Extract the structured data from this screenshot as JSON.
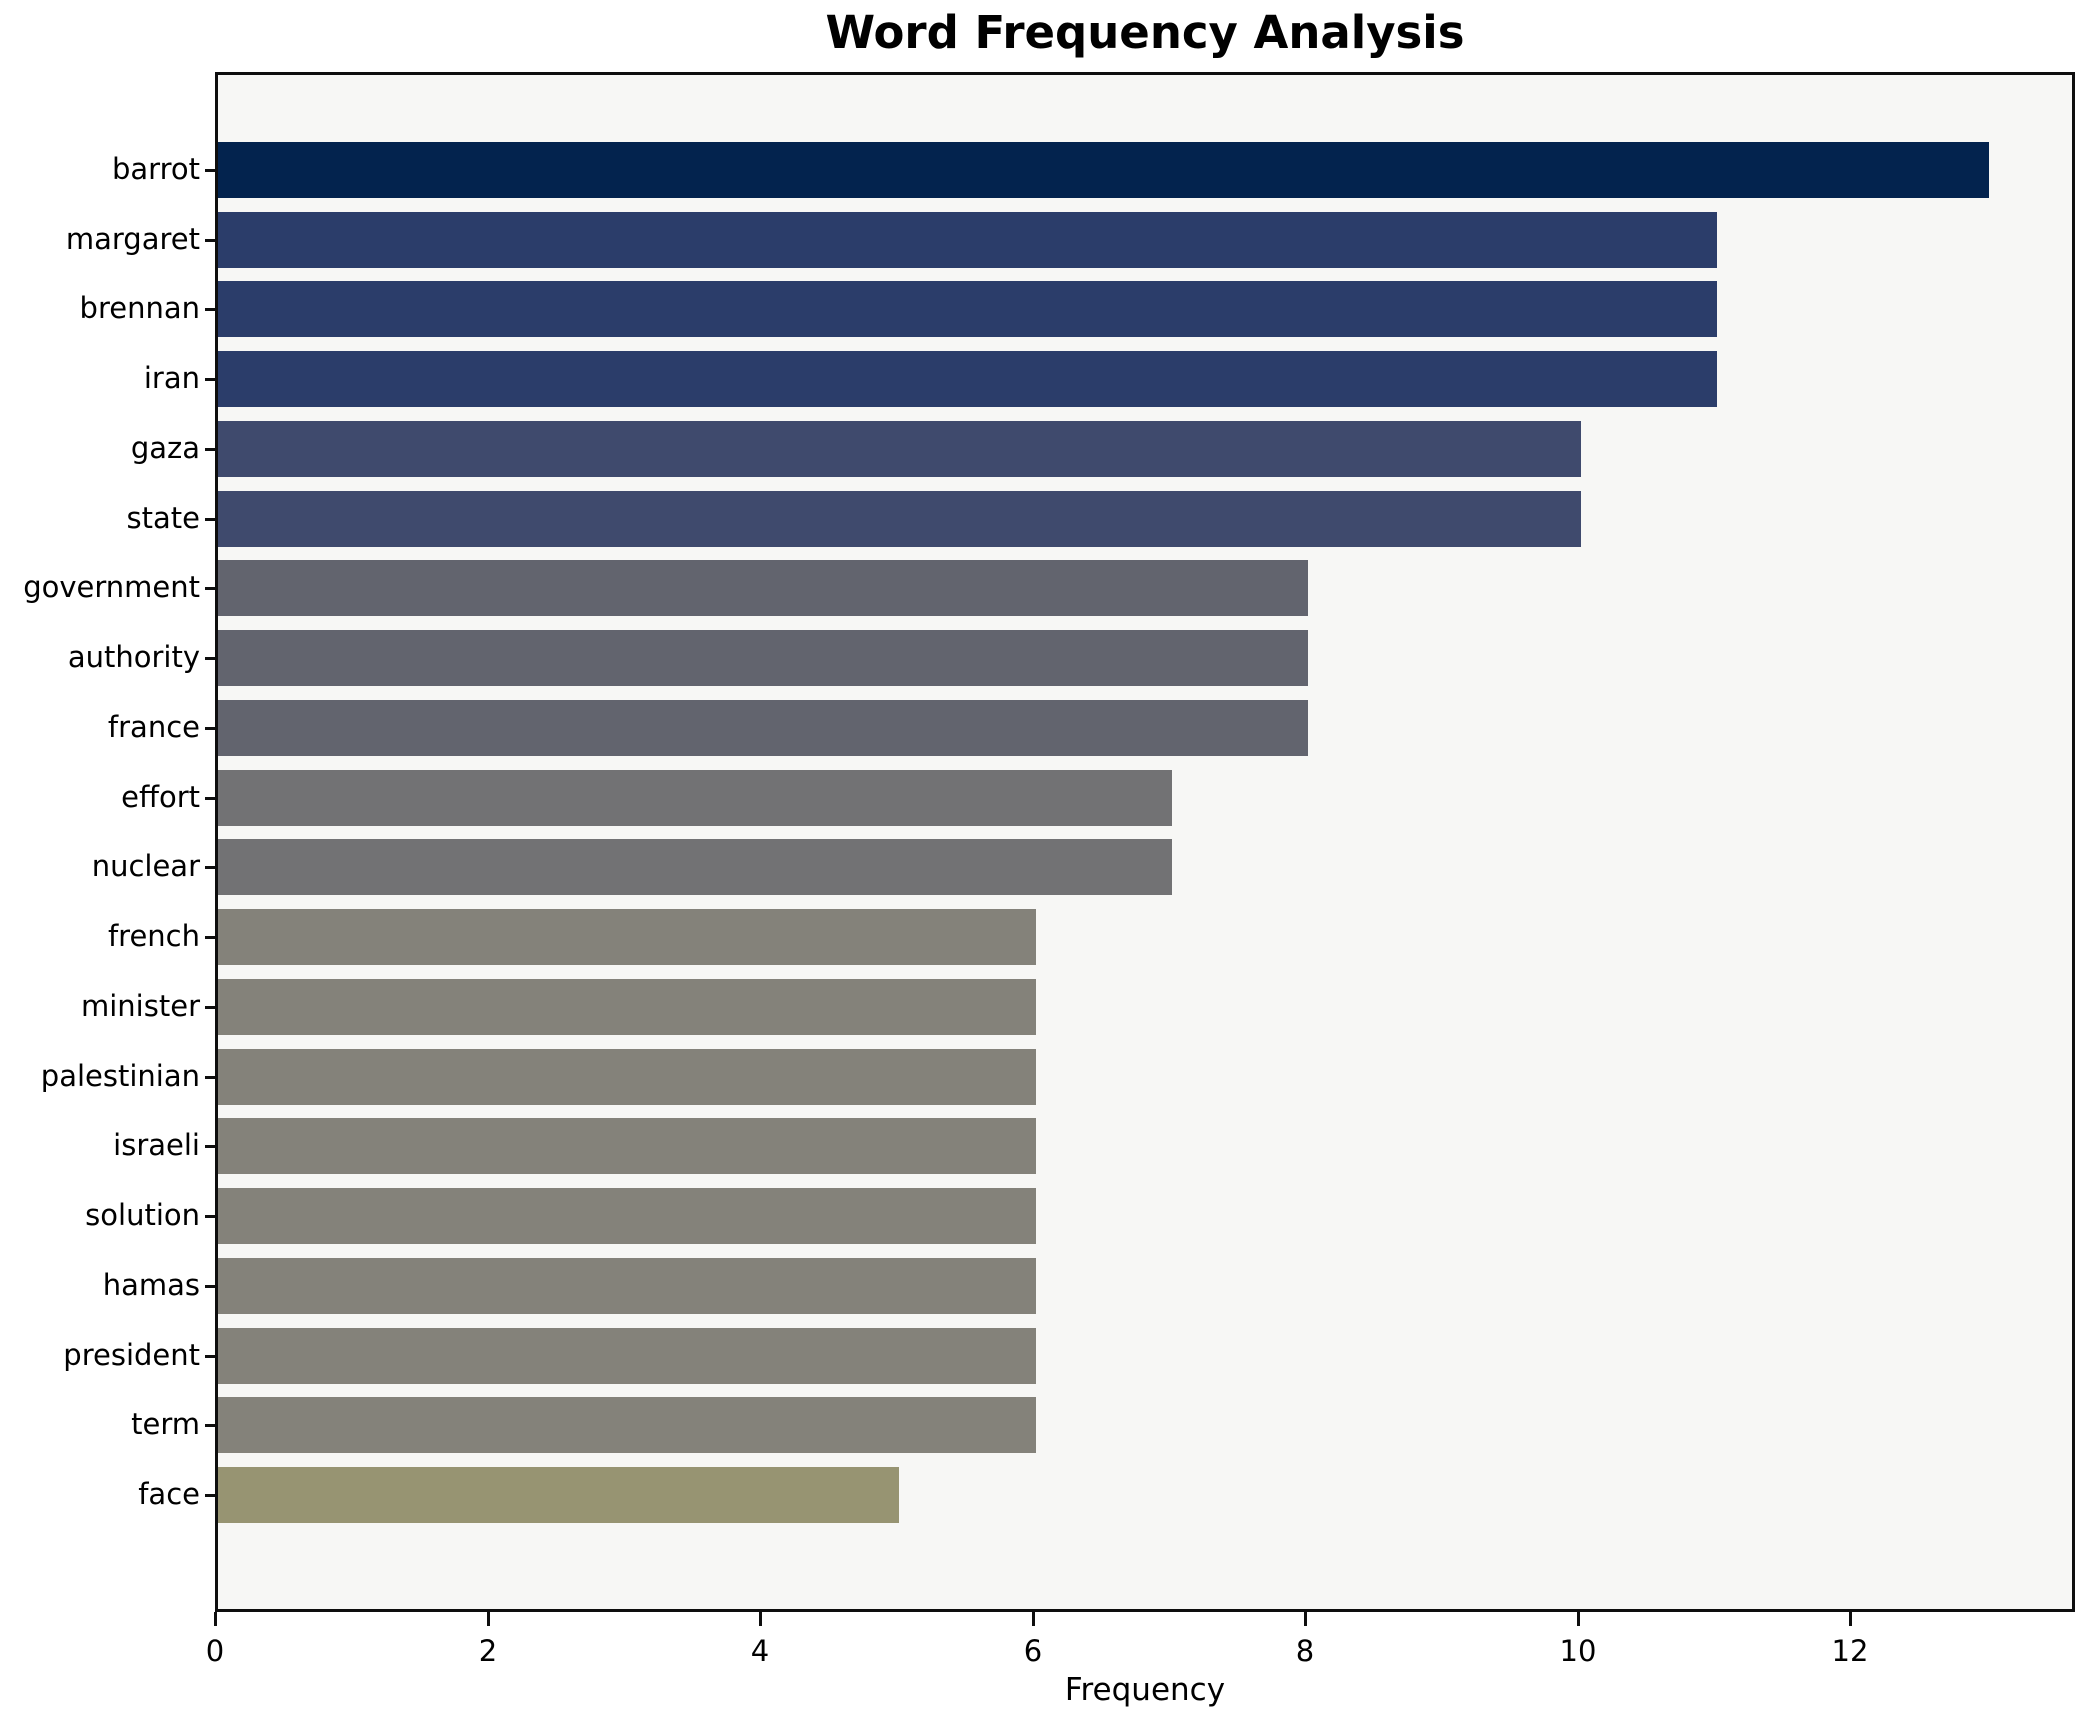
{
  "chart_data": {
    "type": "bar",
    "orientation": "horizontal",
    "title": "Word Frequency Analysis",
    "xlabel": "Frequency",
    "ylabel": "",
    "categories": [
      "barrot",
      "margaret",
      "brennan",
      "iran",
      "gaza",
      "state",
      "government",
      "authority",
      "france",
      "effort",
      "nuclear",
      "french",
      "minister",
      "palestinian",
      "israeli",
      "solution",
      "hamas",
      "president",
      "term",
      "face"
    ],
    "values": [
      13,
      11,
      11,
      11,
      10,
      10,
      8,
      8,
      8,
      7,
      7,
      6,
      6,
      6,
      6,
      6,
      6,
      6,
      6,
      5
    ],
    "bar_colors": [
      "#03234e",
      "#2b3d6a",
      "#2b3d6a",
      "#2b3d6a",
      "#3f4a6d",
      "#3f4a6d",
      "#62646e",
      "#62646e",
      "#62646e",
      "#727274",
      "#727274",
      "#84827a",
      "#84827a",
      "#84827a",
      "#84827a",
      "#84827a",
      "#84827a",
      "#84827a",
      "#84827a",
      "#979472"
    ],
    "xticks": [
      "0",
      "2",
      "4",
      "6",
      "8",
      "10",
      "12"
    ],
    "xtick_values": [
      0,
      2,
      4,
      6,
      8,
      10,
      12
    ],
    "xlim": [
      0,
      13.65
    ],
    "grid": false,
    "legend_position": "none",
    "plot_background": "#f7f7f5",
    "figure_background": "#ffffff",
    "axis_color": "#0e0e0e"
  }
}
